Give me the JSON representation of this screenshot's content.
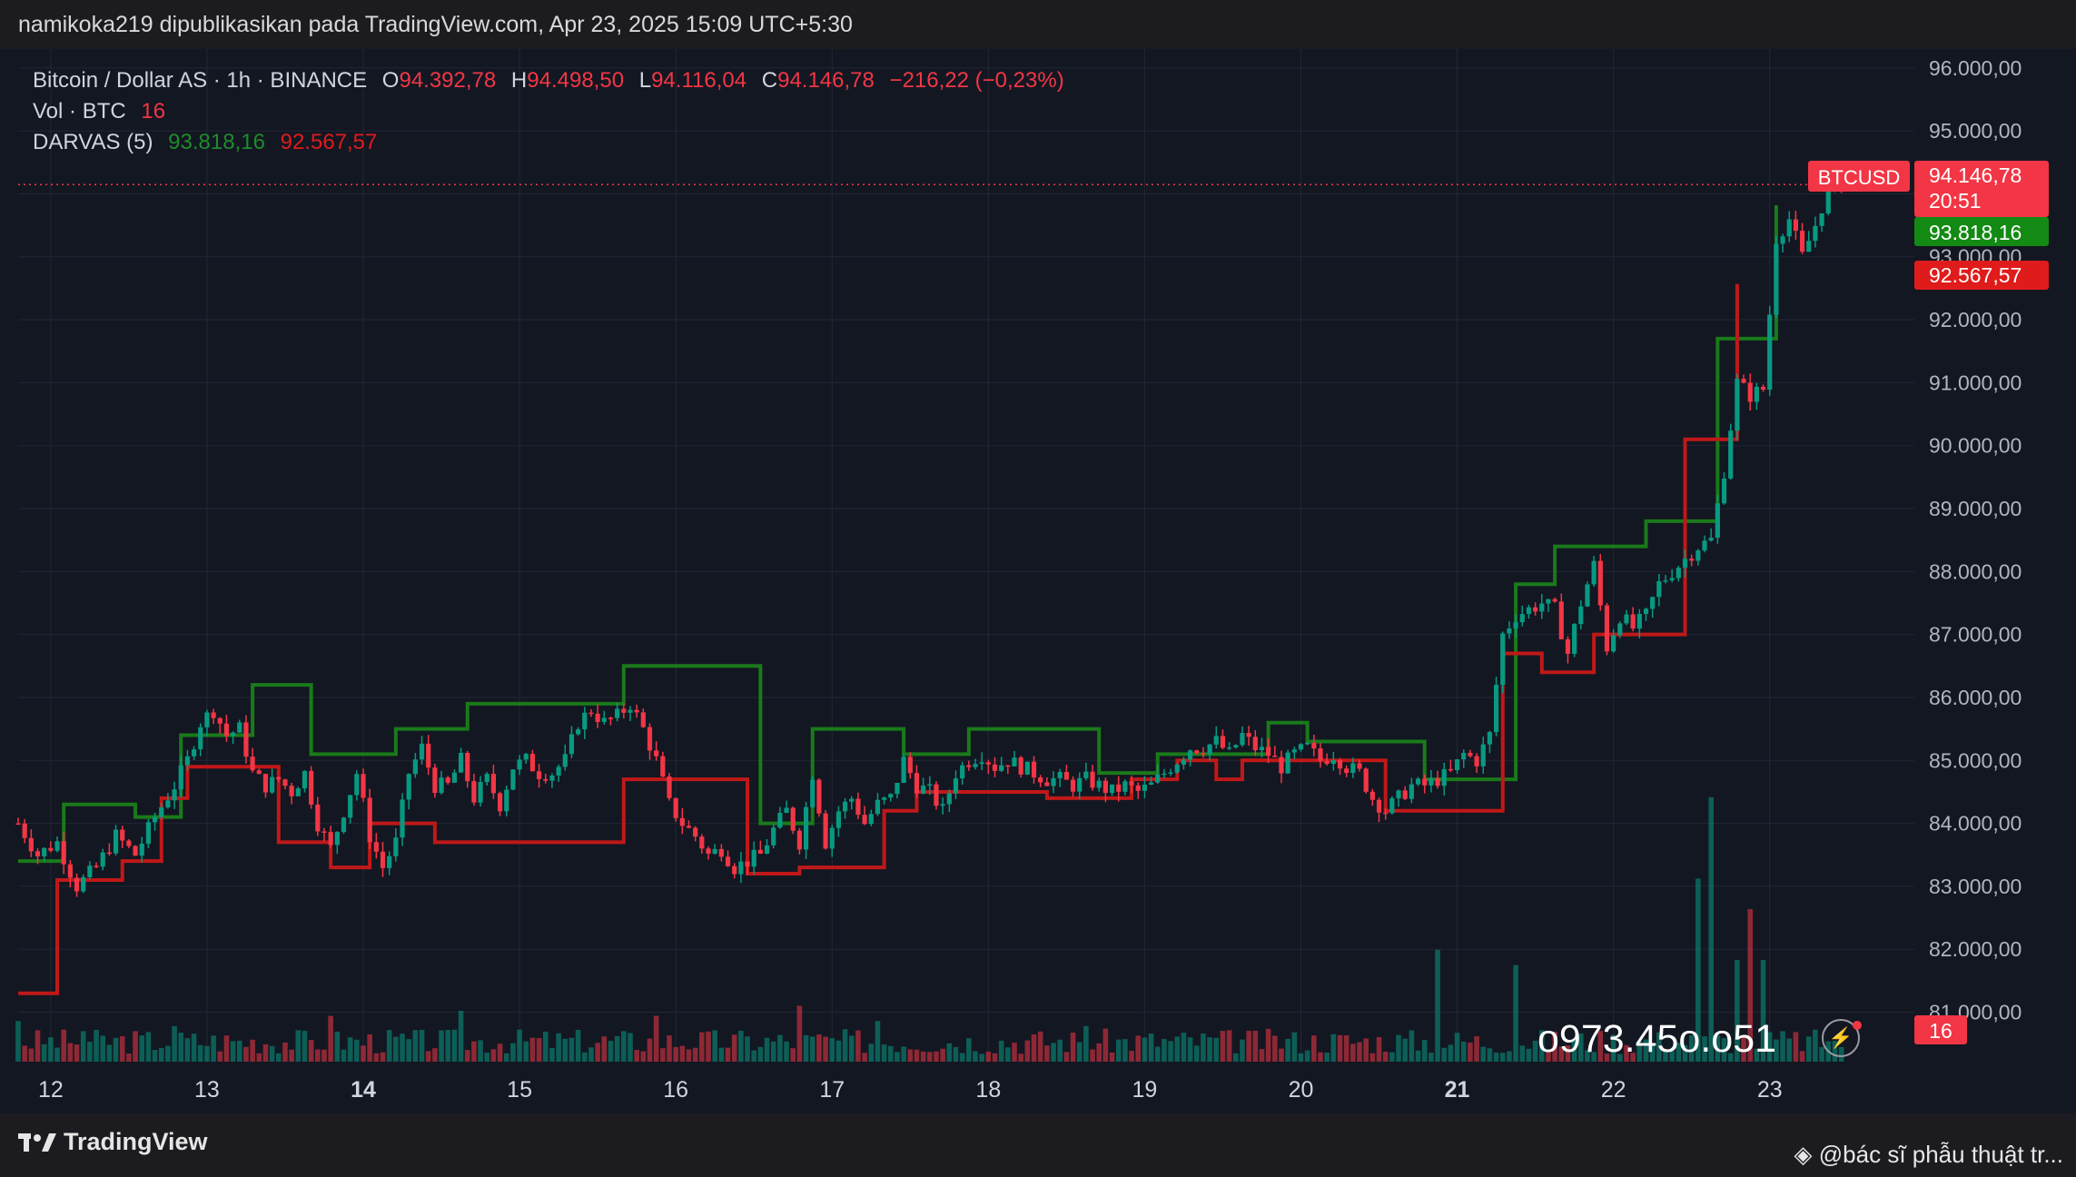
{
  "header": {
    "publish_line": "namikoka219 dipublikasikan pada TradingView.com, Apr 23, 2025 15:09 UTC+5:30"
  },
  "legend": {
    "symbol": "Bitcoin / Dollar AS · 1h · BINANCE",
    "o_label": "O",
    "o_value": "94.392,78",
    "h_label": "H",
    "h_value": "94.498,50",
    "l_label": "L",
    "l_value": "94.116,04",
    "c_label": "C",
    "c_value": "94.146,78",
    "change": "−216,22 (−0,23%)",
    "vol_label": "Vol · BTC",
    "vol_value": "16",
    "darvas_label": "DARVAS (5)",
    "darvas_upper": "93.818,16",
    "darvas_lower": "92.567,57"
  },
  "price_tags": {
    "symbol_tag": "BTCUSD",
    "last_price": "94.146,78",
    "countdown": "20:51",
    "upper_box": "93.818,16",
    "lower_box": "92.567,57",
    "volume": "16"
  },
  "colors": {
    "background": "#131722",
    "up": "#089981",
    "down": "#f23645",
    "darvas_upper": "#1a7a1a",
    "darvas_lower": "#c01818"
  },
  "watermark_phone": "o973.45o.o51",
  "footer": {
    "brand": "TradingView",
    "credit": "@bác sĩ phẫu thuật tr..."
  },
  "chart_data": {
    "type": "candlestick",
    "title": "Bitcoin / Dollar AS · 1h · BINANCE",
    "y_axis": {
      "min": 80200,
      "max": 96300,
      "ticks": [
        96000,
        95000,
        94000,
        93000,
        92000,
        91000,
        90000,
        89000,
        88000,
        87000,
        86000,
        85000,
        84000,
        83000,
        82000,
        81000
      ],
      "tick_labels": [
        "96.000,00",
        "95.000,00",
        "94.000,00",
        "93.000,00",
        "92.000,00",
        "91.000,00",
        "90.000,00",
        "89.000,00",
        "88.000,00",
        "87.000,00",
        "86.000,00",
        "85.000,00",
        "84.000,00",
        "83.000,00",
        "82.000,00",
        "81.000,00"
      ]
    },
    "x_axis": {
      "hours_span": 272,
      "labels": [
        {
          "text": "12",
          "hour": 5,
          "bold": false
        },
        {
          "text": "13",
          "hour": 29,
          "bold": false
        },
        {
          "text": "14",
          "hour": 53,
          "bold": true
        },
        {
          "text": "15",
          "hour": 77,
          "bold": false
        },
        {
          "text": "16",
          "hour": 101,
          "bold": false
        },
        {
          "text": "17",
          "hour": 125,
          "bold": false
        },
        {
          "text": "18",
          "hour": 149,
          "bold": false
        },
        {
          "text": "19",
          "hour": 173,
          "bold": false
        },
        {
          "text": "20",
          "hour": 197,
          "bold": false
        },
        {
          "text": "21",
          "hour": 221,
          "bold": true
        },
        {
          "text": "22",
          "hour": 245,
          "bold": false
        },
        {
          "text": "23",
          "hour": 269,
          "bold": false
        }
      ]
    },
    "price_anchors": [
      [
        0,
        84000
      ],
      [
        3,
        83500
      ],
      [
        6,
        83700
      ],
      [
        9,
        83000
      ],
      [
        12,
        83300
      ],
      [
        15,
        83800
      ],
      [
        18,
        83500
      ],
      [
        21,
        84100
      ],
      [
        24,
        84600
      ],
      [
        26,
        85000
      ],
      [
        28,
        85600
      ],
      [
        30,
        85800
      ],
      [
        32,
        85400
      ],
      [
        34,
        85500
      ],
      [
        36,
        84800
      ],
      [
        38,
        84600
      ],
      [
        40,
        84700
      ],
      [
        42,
        84500
      ],
      [
        44,
        84800
      ],
      [
        46,
        84000
      ],
      [
        48,
        83600
      ],
      [
        50,
        84200
      ],
      [
        52,
        84800
      ],
      [
        54,
        83800
      ],
      [
        56,
        83300
      ],
      [
        58,
        83700
      ],
      [
        60,
        84800
      ],
      [
        62,
        85200
      ],
      [
        64,
        84600
      ],
      [
        66,
        84600
      ],
      [
        68,
        85000
      ],
      [
        70,
        84400
      ],
      [
        72,
        84700
      ],
      [
        74,
        84300
      ],
      [
        76,
        84900
      ],
      [
        78,
        85000
      ],
      [
        80,
        84800
      ],
      [
        82,
        84800
      ],
      [
        84,
        85000
      ],
      [
        86,
        85600
      ],
      [
        88,
        85800
      ],
      [
        90,
        85600
      ],
      [
        92,
        85700
      ],
      [
        94,
        85900
      ],
      [
        96,
        85500
      ],
      [
        98,
        85000
      ],
      [
        100,
        84300
      ],
      [
        102,
        84000
      ],
      [
        104,
        83800
      ],
      [
        106,
        83500
      ],
      [
        108,
        83600
      ],
      [
        110,
        83300
      ],
      [
        112,
        83400
      ],
      [
        114,
        83500
      ],
      [
        116,
        83900
      ],
      [
        118,
        84200
      ],
      [
        120,
        83700
      ],
      [
        122,
        84800
      ],
      [
        124,
        83700
      ],
      [
        126,
        84200
      ],
      [
        128,
        84400
      ],
      [
        130,
        84000
      ],
      [
        132,
        84300
      ],
      [
        134,
        84400
      ],
      [
        136,
        85000
      ],
      [
        138,
        84600
      ],
      [
        140,
        84500
      ],
      [
        142,
        84200
      ],
      [
        144,
        84800
      ],
      [
        146,
        85000
      ],
      [
        148,
        85100
      ],
      [
        150,
        84900
      ],
      [
        152,
        85000
      ],
      [
        154,
        84900
      ],
      [
        156,
        84800
      ],
      [
        158,
        84700
      ],
      [
        160,
        84700
      ],
      [
        162,
        84600
      ],
      [
        164,
        84700
      ],
      [
        166,
        84600
      ],
      [
        168,
        84500
      ],
      [
        170,
        84600
      ],
      [
        172,
        84500
      ],
      [
        174,
        84600
      ],
      [
        176,
        84800
      ],
      [
        178,
        85000
      ],
      [
        180,
        85200
      ],
      [
        182,
        85200
      ],
      [
        184,
        85300
      ],
      [
        186,
        85100
      ],
      [
        188,
        85400
      ],
      [
        190,
        85200
      ],
      [
        192,
        85100
      ],
      [
        194,
        84900
      ],
      [
        196,
        85100
      ],
      [
        198,
        85200
      ],
      [
        200,
        85000
      ],
      [
        202,
        85100
      ],
      [
        204,
        84900
      ],
      [
        206,
        84800
      ],
      [
        208,
        84400
      ],
      [
        210,
        84200
      ],
      [
        212,
        84400
      ],
      [
        214,
        84600
      ],
      [
        216,
        84600
      ],
      [
        218,
        84700
      ],
      [
        220,
        84800
      ],
      [
        222,
        85100
      ],
      [
        224,
        85000
      ],
      [
        226,
        85400
      ],
      [
        228,
        87000
      ],
      [
        230,
        87300
      ],
      [
        232,
        87400
      ],
      [
        234,
        87500
      ],
      [
        236,
        87400
      ],
      [
        238,
        86700
      ],
      [
        240,
        87500
      ],
      [
        242,
        88100
      ],
      [
        244,
        86800
      ],
      [
        246,
        87300
      ],
      [
        248,
        87100
      ],
      [
        250,
        87300
      ],
      [
        252,
        87800
      ],
      [
        254,
        88000
      ],
      [
        256,
        88200
      ],
      [
        258,
        88400
      ],
      [
        260,
        88500
      ],
      [
        262,
        89600
      ],
      [
        264,
        91000
      ],
      [
        266,
        90800
      ],
      [
        268,
        90900
      ],
      [
        270,
        93300
      ],
      [
        272,
        93600
      ],
      [
        274,
        93000
      ],
      [
        276,
        93500
      ],
      [
        278,
        94100
      ],
      [
        280,
        94150
      ]
    ],
    "darvas_upper": [
      [
        0,
        83400
      ],
      [
        7,
        83400
      ],
      [
        7,
        84300
      ],
      [
        18,
        84300
      ],
      [
        18,
        84100
      ],
      [
        25,
        84100
      ],
      [
        25,
        85400
      ],
      [
        36,
        85400
      ],
      [
        36,
        86200
      ],
      [
        45,
        86200
      ],
      [
        45,
        85100
      ],
      [
        58,
        85100
      ],
      [
        58,
        85500
      ],
      [
        69,
        85500
      ],
      [
        69,
        85900
      ],
      [
        93,
        85900
      ],
      [
        93,
        86500
      ],
      [
        114,
        86500
      ],
      [
        114,
        84000
      ],
      [
        122,
        84000
      ],
      [
        122,
        85500
      ],
      [
        136,
        85500
      ],
      [
        136,
        85100
      ],
      [
        146,
        85100
      ],
      [
        146,
        85500
      ],
      [
        166,
        85500
      ],
      [
        166,
        84800
      ],
      [
        175,
        84800
      ],
      [
        175,
        85100
      ],
      [
        192,
        85100
      ],
      [
        192,
        85600
      ],
      [
        198,
        85600
      ],
      [
        198,
        85300
      ],
      [
        216,
        85300
      ],
      [
        216,
        84700
      ],
      [
        230,
        84700
      ],
      [
        230,
        87800
      ],
      [
        236,
        87800
      ],
      [
        236,
        88400
      ],
      [
        250,
        88400
      ],
      [
        250,
        88800
      ],
      [
        261,
        88800
      ],
      [
        261,
        91700
      ],
      [
        270,
        91700
      ],
      [
        270,
        93818
      ]
    ],
    "darvas_lower": [
      [
        0,
        81300
      ],
      [
        6,
        81300
      ],
      [
        6,
        83100
      ],
      [
        16,
        83100
      ],
      [
        16,
        83400
      ],
      [
        22,
        83400
      ],
      [
        22,
        84400
      ],
      [
        26,
        84400
      ],
      [
        26,
        84900
      ],
      [
        40,
        84900
      ],
      [
        40,
        83700
      ],
      [
        48,
        83700
      ],
      [
        48,
        83300
      ],
      [
        54,
        83300
      ],
      [
        54,
        84000
      ],
      [
        64,
        84000
      ],
      [
        64,
        83700
      ],
      [
        93,
        83700
      ],
      [
        93,
        84700
      ],
      [
        112,
        84700
      ],
      [
        112,
        83200
      ],
      [
        120,
        83200
      ],
      [
        120,
        83300
      ],
      [
        133,
        83300
      ],
      [
        133,
        84200
      ],
      [
        138,
        84200
      ],
      [
        138,
        84500
      ],
      [
        158,
        84500
      ],
      [
        158,
        84400
      ],
      [
        171,
        84400
      ],
      [
        171,
        84700
      ],
      [
        178,
        84700
      ],
      [
        178,
        85000
      ],
      [
        184,
        85000
      ],
      [
        184,
        84700
      ],
      [
        188,
        84700
      ],
      [
        188,
        85000
      ],
      [
        210,
        85000
      ],
      [
        210,
        84200
      ],
      [
        228,
        84200
      ],
      [
        228,
        86700
      ],
      [
        234,
        86700
      ],
      [
        234,
        86400
      ],
      [
        242,
        86400
      ],
      [
        242,
        87000
      ],
      [
        256,
        87000
      ],
      [
        256,
        90100
      ],
      [
        264,
        90100
      ],
      [
        264,
        92568
      ]
    ],
    "volume_spikes": [
      [
        0,
        8
      ],
      [
        10,
        6
      ],
      [
        24,
        7
      ],
      [
        48,
        9
      ],
      [
        68,
        10
      ],
      [
        98,
        9
      ],
      [
        120,
        11
      ],
      [
        132,
        8
      ],
      [
        164,
        7
      ],
      [
        218,
        22
      ],
      [
        230,
        19
      ],
      [
        258,
        36
      ],
      [
        260,
        52
      ],
      [
        264,
        20
      ],
      [
        266,
        30
      ],
      [
        268,
        20
      ],
      [
        278,
        4
      ]
    ]
  }
}
